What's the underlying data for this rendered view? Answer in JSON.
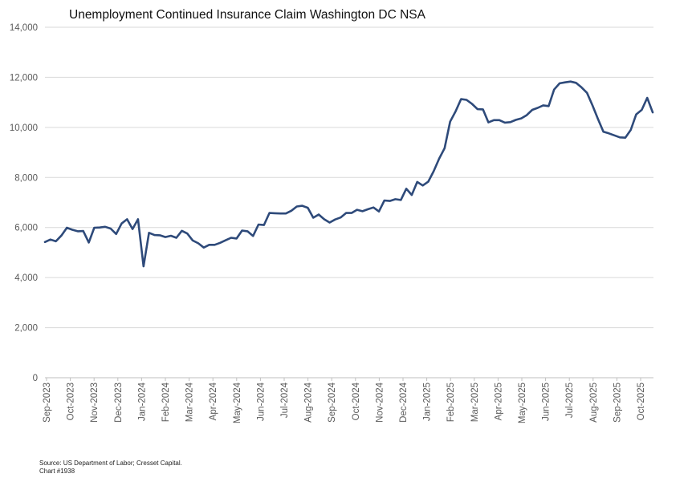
{
  "chart_data": {
    "type": "line",
    "title": "Unemployment Continued Insurance Claim Washington DC NSA",
    "xlabel": "",
    "ylabel": "",
    "ylim": [
      0,
      14000
    ],
    "yticks": [
      0,
      2000,
      4000,
      6000,
      8000,
      10000,
      12000,
      14000
    ],
    "ytick_labels": [
      "0",
      "2,000",
      "4,000",
      "6,000",
      "8,000",
      "10,000",
      "12,000",
      "14,000"
    ],
    "xtick_labels": [
      "Sep-2023",
      "Oct-2023",
      "Nov-2023",
      "Dec-2023",
      "Jan-2024",
      "Feb-2024",
      "Mar-2024",
      "Apr-2024",
      "May-2024",
      "Jun-2024",
      "Jul-2024",
      "Aug-2024",
      "Sep-2024",
      "Oct-2024",
      "Nov-2024",
      "Dec-2024",
      "Jan-2025",
      "Feb-2025",
      "Mar-2025",
      "Apr-2025",
      "May-2025",
      "Jun-2025",
      "Jul-2025",
      "Aug-2025",
      "Sep-2025",
      "Oct-2025"
    ],
    "grid": true,
    "line_color": "#2e4a7a",
    "series": [
      {
        "values": [
          5420,
          5520,
          5450,
          5680,
          5990,
          5910,
          5850,
          5860,
          5400,
          5990,
          6000,
          6030,
          5960,
          5740,
          6160,
          6330,
          5940,
          6330,
          4450,
          5790,
          5700,
          5690,
          5620,
          5670,
          5590,
          5870,
          5760,
          5480,
          5370,
          5200,
          5310,
          5310,
          5390,
          5490,
          5590,
          5560,
          5880,
          5850,
          5660,
          6120,
          6100,
          6580,
          6570,
          6560,
          6560,
          6670,
          6840,
          6870,
          6790,
          6390,
          6520,
          6330,
          6200,
          6320,
          6400,
          6580,
          6580,
          6710,
          6650,
          6730,
          6800,
          6640,
          7080,
          7060,
          7130,
          7100,
          7550,
          7300,
          7820,
          7680,
          7830,
          8250,
          8750,
          9170,
          10230,
          10640,
          11130,
          11100,
          10940,
          10730,
          10720,
          10200,
          10290,
          10290,
          10190,
          10210,
          10300,
          10360,
          10490,
          10700,
          10780,
          10880,
          10850,
          11510,
          11760,
          11800,
          11830,
          11780,
          11600,
          11380,
          10880,
          10340,
          9830,
          9760,
          9680,
          9600,
          9590,
          9900,
          10520,
          10700,
          11180,
          10600
        ]
      }
    ]
  },
  "footer": {
    "source": "Source: US Department of Labor; Cresset Capital.",
    "chart_id": "Chart #1938"
  }
}
